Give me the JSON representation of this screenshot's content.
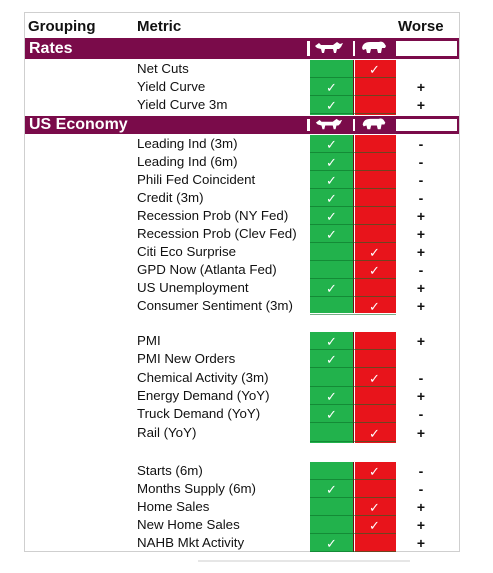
{
  "header": {
    "grouping": "Grouping",
    "metric": "Metric",
    "worse": "Worse"
  },
  "sections": [
    {
      "name": "Rates",
      "rows": [
        {
          "metric": "Net Cuts",
          "signal": "bear",
          "worse": ""
        },
        {
          "metric": "Yield Curve",
          "signal": "bull",
          "worse": "+"
        },
        {
          "metric": "Yield Curve 3m",
          "signal": "bull",
          "worse": "+"
        }
      ]
    },
    {
      "name": "US Economy",
      "rows": [
        {
          "metric": "Leading Ind (3m)",
          "signal": "bull",
          "worse": "-"
        },
        {
          "metric": "Leading Ind (6m)",
          "signal": "bull",
          "worse": "-"
        },
        {
          "metric": "Phili Fed Coincident",
          "signal": "bull",
          "worse": "-"
        },
        {
          "metric": "Credit (3m)",
          "signal": "bull",
          "worse": "-"
        },
        {
          "metric": "Recession Prob (NY Fed)",
          "signal": "bull",
          "worse": "+"
        },
        {
          "metric": "Recession Prob (Clev Fed)",
          "signal": "bull",
          "worse": "+"
        },
        {
          "metric": "Citi Eco Surprise",
          "signal": "bear",
          "worse": "+"
        },
        {
          "metric": "GPD Now (Atlanta Fed)",
          "signal": "bear",
          "worse": "-"
        },
        {
          "metric": "US Unemployment",
          "signal": "bull",
          "worse": "+"
        },
        {
          "metric": "Consumer Sentiment (3m)",
          "signal": "bear",
          "worse": "+"
        },
        {
          "metric": "PMI",
          "signal": "bull",
          "worse": "+"
        },
        {
          "metric": "PMI New Orders",
          "signal": "bull",
          "worse": ""
        },
        {
          "metric": "Chemical Activity (3m)",
          "signal": "bear",
          "worse": "-"
        },
        {
          "metric": "Energy Demand (YoY)",
          "signal": "bull",
          "worse": "+"
        },
        {
          "metric": "Truck Demand (YoY)",
          "signal": "bull",
          "worse": "-"
        },
        {
          "metric": "Rail (YoY)",
          "signal": "bear",
          "worse": "+"
        },
        {
          "metric": "Starts (6m)",
          "signal": "bear",
          "worse": "-"
        },
        {
          "metric": "Months Supply (6m)",
          "signal": "bull",
          "worse": "-"
        },
        {
          "metric": "Home Sales",
          "signal": "bear",
          "worse": "+"
        },
        {
          "metric": "New Home Sales",
          "signal": "bear",
          "worse": "+"
        },
        {
          "metric": "NAHB Mkt Activity",
          "signal": "bull",
          "worse": "+"
        }
      ]
    }
  ],
  "icons": {
    "bull": "bull-icon",
    "bear": "bear-icon",
    "check": "✓"
  },
  "colors": {
    "band": "#7a0b4a",
    "bull": "#22b24c",
    "bear": "#e8141b"
  }
}
